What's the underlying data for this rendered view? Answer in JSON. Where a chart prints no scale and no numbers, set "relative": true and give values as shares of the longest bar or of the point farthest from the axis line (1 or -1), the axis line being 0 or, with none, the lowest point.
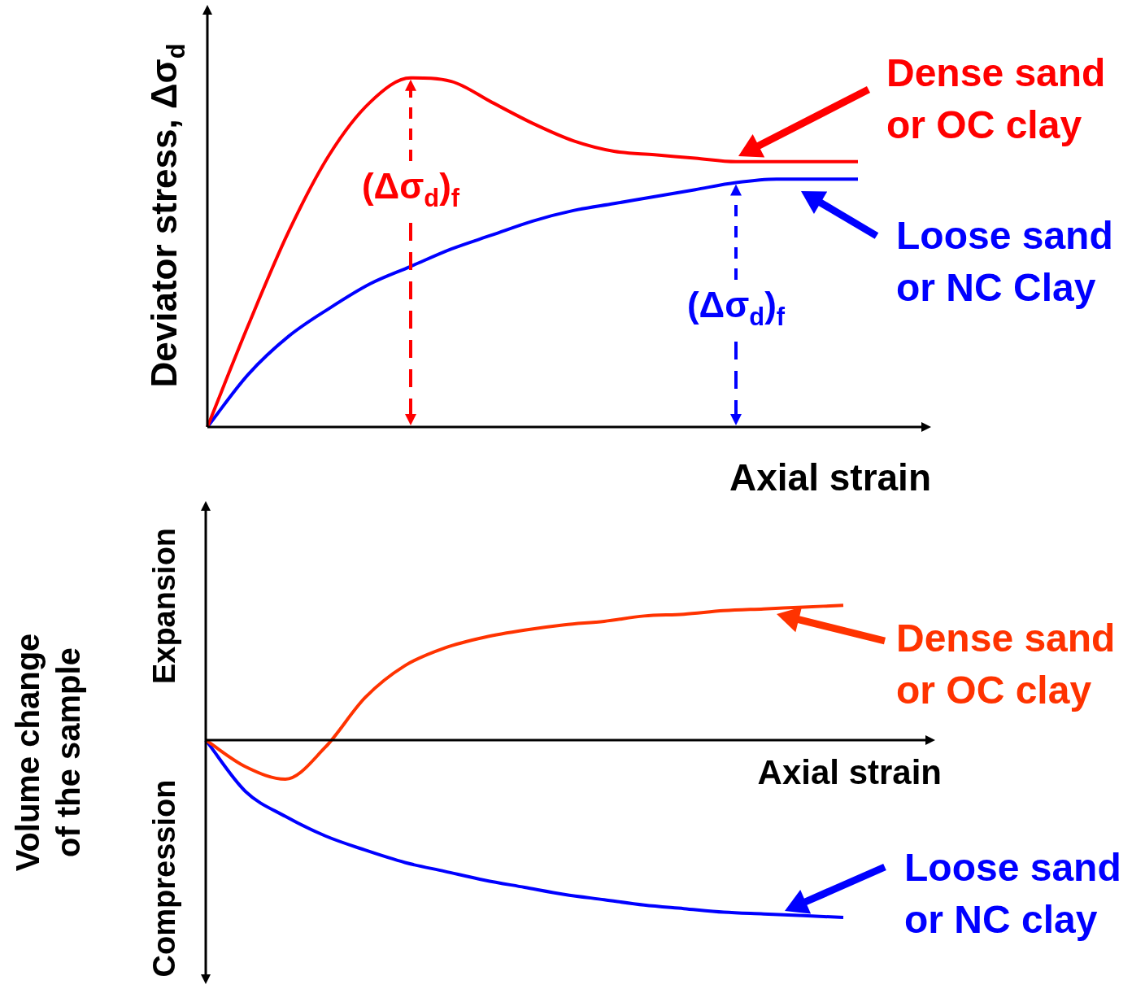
{
  "chart_data": [
    {
      "type": "line",
      "relative": true,
      "xlabel": "Axial strain",
      "ylabel": "Deviator stress, Δσ$_{d}$",
      "legend": "right",
      "grid": false,
      "marker": "none",
      "categories": [
        null,
        null,
        null,
        null,
        null,
        null,
        null,
        null,
        null,
        null,
        null,
        null,
        null,
        null,
        null,
        null,
        null
      ],
      "series": [
        {
          "name": "Dense sand or OC clay",
          "color": "#ff0000",
          "values": [
            0,
            0.29,
            0.56,
            0.78,
            0.93,
            1.0,
            0.99,
            0.93,
            0.87,
            0.82,
            0.79,
            0.78,
            0.77,
            0.76,
            0.76,
            0.76,
            0.76
          ]
        },
        {
          "name": "Loose sand or NC Clay",
          "color": "#0000ff",
          "values": [
            0,
            0.15,
            0.26,
            0.34,
            0.41,
            0.46,
            0.51,
            0.55,
            0.59,
            0.62,
            0.64,
            0.66,
            0.68,
            0.7,
            0.71,
            0.71,
            0.71
          ]
        }
      ],
      "annotations": [
        "(Δσ$_{d}$)$_{f}$",
        "(Δσ$_{d}$)$_{f}$"
      ]
    },
    {
      "type": "line",
      "relative": true,
      "xlabel": "Axial strain",
      "ylabel": "Volume change of the sample",
      "legend": "right",
      "grid": false,
      "marker": "none",
      "categories": [
        null,
        null,
        null,
        null,
        null,
        null,
        null,
        null,
        null,
        null,
        null,
        null,
        null,
        null,
        null,
        null,
        null
      ],
      "series": [
        {
          "name": "Dense sand or OC clay",
          "color": "#ff3300",
          "values": [
            0,
            -0.15,
            -0.22,
            -0.04,
            0.24,
            0.42,
            0.52,
            0.58,
            0.62,
            0.65,
            0.67,
            0.7,
            0.71,
            0.73,
            0.74,
            0.75,
            0.76
          ]
        },
        {
          "name": "Loose sand or NC clay",
          "color": "#0000ff",
          "values": [
            0,
            -0.29,
            -0.43,
            -0.54,
            -0.62,
            -0.69,
            -0.74,
            -0.79,
            -0.83,
            -0.87,
            -0.9,
            -0.93,
            -0.95,
            -0.97,
            -0.98,
            -0.99,
            -1
          ]
        }
      ],
      "annotations": [
        "Expansion",
        "Compression"
      ]
    }
  ]
}
